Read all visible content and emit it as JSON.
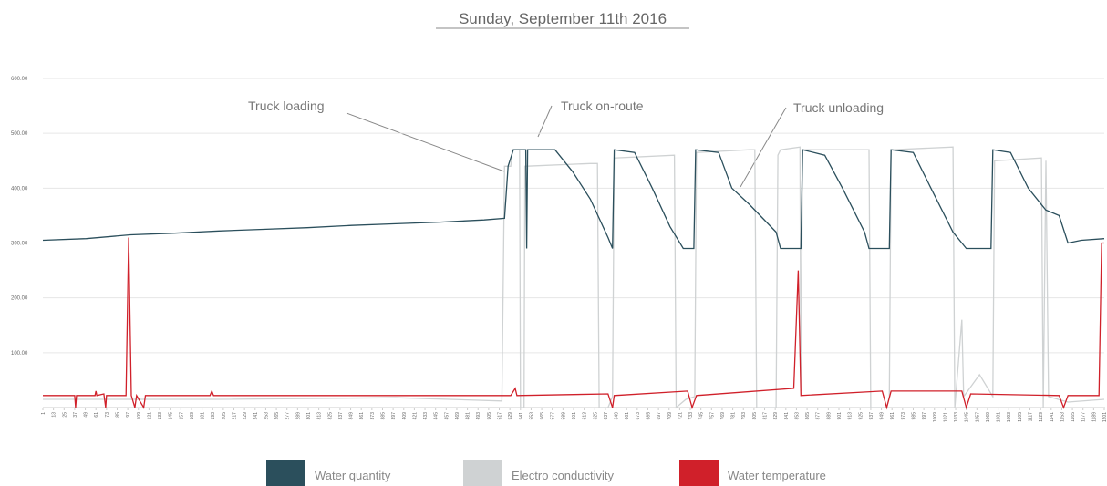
{
  "chart_data": {
    "type": "line",
    "title": "Sunday, September 11th 2016",
    "annotations": [
      "Truck loading",
      "Truck on-route",
      "Truck unloading"
    ],
    "xlim": [
      1,
      1201
    ],
    "xticks": [
      1,
      13,
      25,
      37,
      49,
      61,
      73,
      85,
      97,
      109,
      121,
      133,
      145,
      157,
      169,
      181,
      193,
      205,
      217,
      229,
      241,
      253,
      265,
      277,
      289,
      301,
      313,
      325,
      337,
      349,
      361,
      373,
      385,
      397,
      409,
      421,
      433,
      445,
      457,
      469,
      481,
      493,
      505,
      517,
      529,
      541,
      553,
      565,
      577,
      589,
      601,
      613,
      625,
      637,
      649,
      661,
      673,
      685,
      697,
      709,
      721,
      733,
      745,
      757,
      769,
      781,
      793,
      805,
      817,
      829,
      841,
      853,
      865,
      877,
      889,
      901,
      913,
      925,
      937,
      949,
      961,
      973,
      985,
      997,
      1009,
      1021,
      1033,
      1045,
      1057,
      1069,
      1081,
      1093,
      1105,
      1117,
      1129,
      1141,
      1153,
      1165,
      1177,
      1189,
      1201
    ],
    "ylim": [
      0,
      600
    ],
    "yticks": [
      {
        "value": 100,
        "label": "100.00"
      },
      {
        "value": 200,
        "label": "200.00"
      },
      {
        "value": 300,
        "label": "300.00"
      },
      {
        "value": 400,
        "label": "400.00"
      },
      {
        "value": 500,
        "label": "500.00"
      },
      {
        "value": 600,
        "label": "600.00"
      }
    ],
    "grid": true,
    "legend": "bottom",
    "series": [
      {
        "name": "Water quantity",
        "color": "#2b4f5c",
        "x": [
          1,
          50,
          100,
          150,
          200,
          250,
          300,
          350,
          400,
          450,
          500,
          523,
          527,
          533,
          547,
          548,
          549,
          580,
          600,
          620,
          640,
          645,
          647,
          670,
          690,
          710,
          725,
          737,
          739,
          765,
          780,
          800,
          830,
          835,
          858,
          860,
          885,
          905,
          930,
          935,
          958,
          960,
          985,
          1005,
          1030,
          1045,
          1073,
          1075,
          1095,
          1115,
          1135,
          1150,
          1160,
          1175,
          1201
        ],
        "values": [
          305,
          308,
          315,
          318,
          322,
          325,
          328,
          332,
          335,
          338,
          342,
          345,
          440,
          470,
          470,
          290,
          470,
          470,
          430,
          380,
          310,
          290,
          470,
          465,
          400,
          330,
          290,
          290,
          470,
          465,
          400,
          370,
          320,
          290,
          290,
          470,
          460,
          400,
          320,
          290,
          290,
          470,
          465,
          400,
          320,
          290,
          290,
          470,
          465,
          400,
          360,
          350,
          300,
          305,
          308
        ]
      },
      {
        "name": "Electro conductivity",
        "color": "#cfd2d3",
        "x": [
          1,
          200,
          400,
          520,
          523,
          530,
          532,
          540,
          541,
          545,
          546,
          620,
          628,
          630,
          640,
          645,
          647,
          715,
          717,
          728,
          738,
          740,
          800,
          806,
          808,
          830,
          832,
          835,
          857,
          858,
          860,
          935,
          937,
          955,
          958,
          960,
          1030,
          1032,
          1040,
          1042,
          1060,
          1075,
          1077,
          1130,
          1132,
          1135,
          1138,
          1160,
          1201
        ],
        "values": [
          15,
          15,
          18,
          12,
          440,
          440,
          470,
          470,
          0,
          0,
          440,
          445,
          445,
          0,
          0,
          20,
          455,
          460,
          0,
          15,
          20,
          465,
          470,
          470,
          0,
          0,
          460,
          470,
          475,
          30,
          470,
          470,
          0,
          0,
          20,
          470,
          475,
          0,
          160,
          20,
          60,
          20,
          450,
          455,
          0,
          450,
          20,
          10,
          15
        ]
      },
      {
        "name": "Water temperature",
        "color": "#d0202a",
        "x": [
          1,
          37,
          38,
          39,
          60,
          61,
          62,
          70,
          72,
          73,
          95,
          98,
          101,
          105,
          107,
          115,
          117,
          190,
          192,
          194,
          530,
          535,
          537,
          640,
          645,
          647,
          730,
          735,
          740,
          850,
          855,
          858,
          950,
          955,
          960,
          1040,
          1045,
          1050,
          1150,
          1155,
          1160,
          1195,
          1198,
          1201
        ],
        "values": [
          22,
          22,
          0,
          22,
          22,
          30,
          22,
          25,
          0,
          22,
          22,
          310,
          22,
          0,
          22,
          0,
          22,
          22,
          30,
          22,
          22,
          35,
          22,
          25,
          0,
          22,
          30,
          0,
          22,
          35,
          250,
          22,
          30,
          0,
          30,
          30,
          0,
          25,
          22,
          0,
          22,
          22,
          300,
          300
        ]
      }
    ]
  }
}
